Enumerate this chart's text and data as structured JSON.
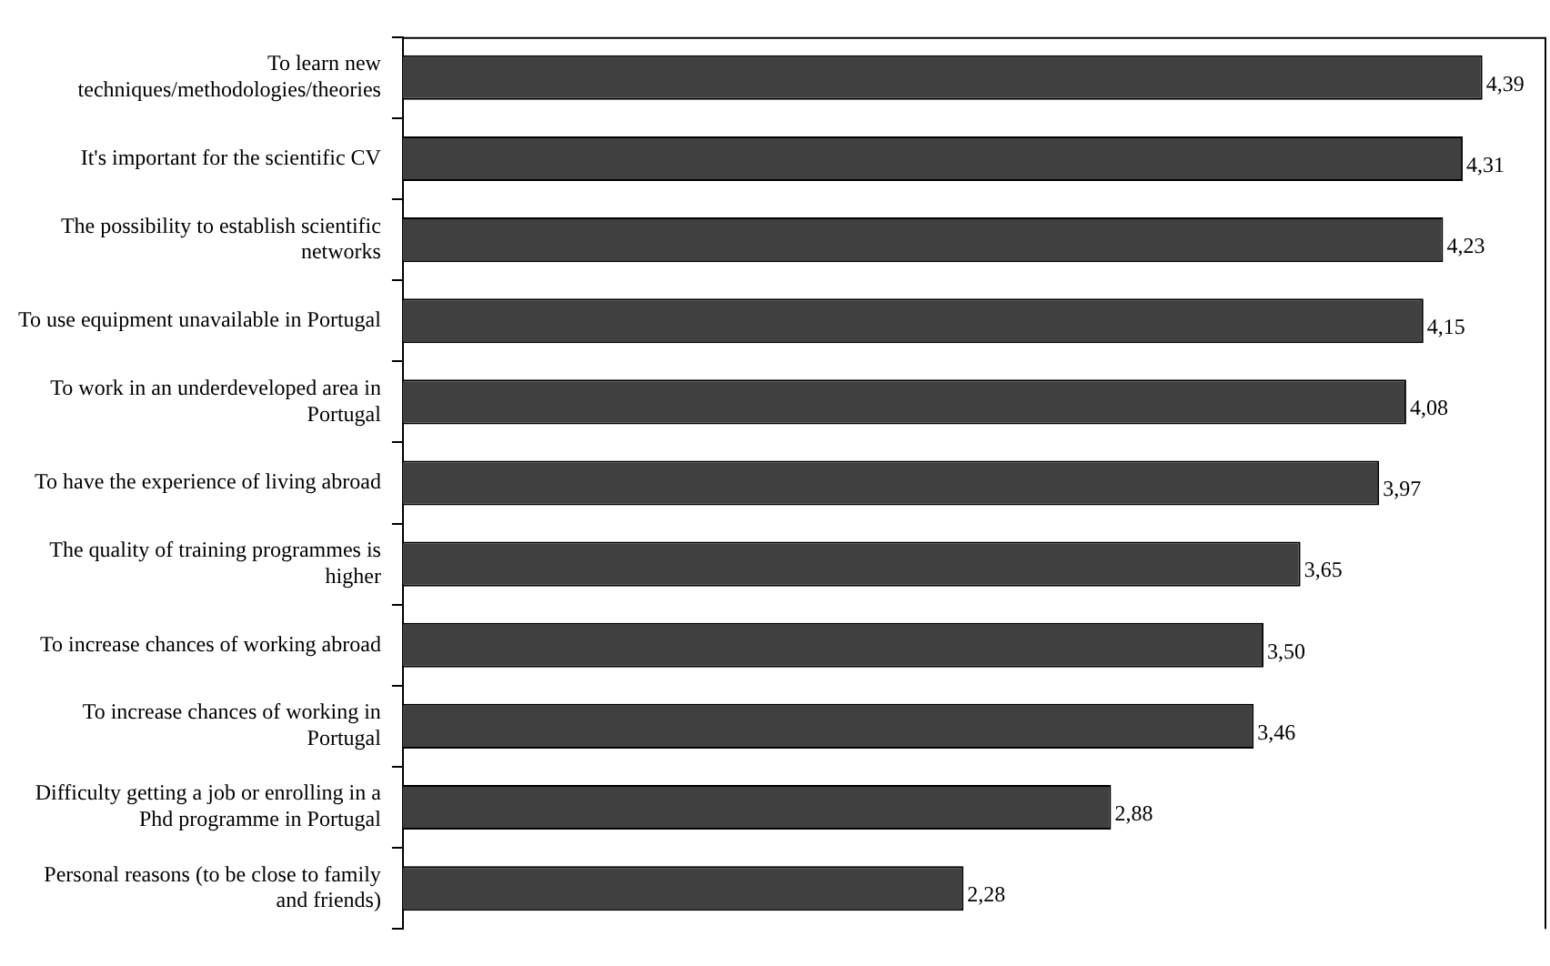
{
  "chart_data": {
    "type": "bar",
    "orientation": "horizontal",
    "value_labels": [
      "4,39",
      "4,31",
      "4,23",
      "4,15",
      "4,08",
      "3,97",
      "3,65",
      "3,50",
      "3,46",
      "2,88",
      "2,28"
    ],
    "grid": false,
    "legend": false,
    "color": "#404040",
    "categories": [
      "To learn new techniques/methodologies/theories",
      "It's important for the scientific CV",
      "The possibility to establish scientific networks",
      "To use equipment unavailable in Portugal",
      "To work in an underdeveloped area in Portugal",
      "To have the experience of living abroad",
      "The quality of training programmes is higher",
      "To increase chances of working abroad",
      "To increase chances of working in Portugal",
      "Difficulty getting a job or enrolling in a Phd programme in Portugal",
      "Personal reasons (to be close to family and friends)"
    ],
    "values": [
      4.39,
      4.31,
      4.23,
      4.15,
      4.08,
      3.97,
      3.65,
      3.5,
      3.46,
      2.88,
      2.28
    ]
  }
}
